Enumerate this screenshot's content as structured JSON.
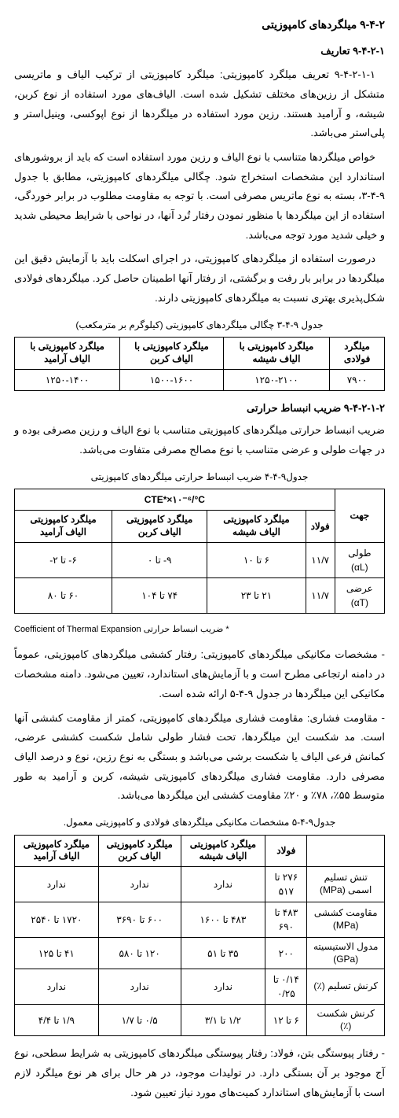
{
  "headings": {
    "sec_9_4_2": "۹-۴-۲  میلگردهای کامپوزیتی",
    "sec_9_4_2_1": "۹-۴-۲-۱ تعاریف",
    "sec_9_4_2_1_2": "۹-۴-۲-۱-۲ ضریب انبساط حرارتی"
  },
  "para": {
    "p1": "۹-۴-۲-۱-۱ تعریف میلگرد کامپوزیتی: میلگرد کامپوزیتی از ترکیب الیاف و ماتریسی متشکل از رزین‌های مختلف تشکیل شده است. الیاف‌های مورد استفاده از نوع کربن، شیشه، و آرامید هستند. رزین مورد استفاده در میلگردها از نوع اپوکسی، وینیل‌استر و پلی‌استر می‌باشد.",
    "p2": "خواص میلگردها متناسب با نوع الیاف و رزین مورد استفاده است که باید از بروشورهای استاندارد این مشخصات استخراج شود. چگالی میلگردهای کامپوزیتی، مطابق با جدول ۹-۴-۳، بسته به نوع ماتریس مصرفی است. با توجه به مقاومت مطلوب در برابر خوردگی، استفاده از این میلگردها با منظور نمودن رفتار تُرد آنها، در نواحی با شرایط محیطی شدید و خیلی شدید مورد توجه می‌باشد.",
    "p3": "درصورت استفاده از میلگردهای کامپوزیتی، در اجرای اسکلت باید با آزمایش دقیق این میلگردها در برابر بار رفت و برگشتی، از رفتار آنها اطمینان حاصل کرد. میلگردهای فولادی شکل‌پذیری بهتری نسبت به میلگردهای کامپوزیتی دارند.",
    "p4": "ضریب انبساط حرارتی میلگردهای کامپوزیتی متناسب با نوع الیاف و رزین مصرفی بوده و در جهات طولی و عرضی متناسب با نوع مصالح مصرفی متفاوت می‌باشد.",
    "b1": "- مشخصات مکانیکی میلگردهای کامپوزیتی: رفتار کششی میلگردهای کامپوزیتی، عموماً در دامنه ارتجاعی مطرح است و با آزمایش‌های استاندارد، تعیین می‌شود. دامنه مشخصات مکانیکی این میلگردها در جدول ۹-۴-۵ ارائه شده است.",
    "b2": "- مقاومت فشاری: مقاومت فشاری میلگردهای کامپوزیتی، کمتر از مقاومت کششی آنها است. مد شکست این میلگردها، تحت فشار طولی شامل شکست کششی عرضی، کمانش فرعی الیاف یا شکست برشی می‌باشد و بستگی به نوع رزین، نوع و درصد الیاف مصرفی دارد. مقاومت فشاری میلگردهای کامپوزیتی شیشه، کربن و آرامید به طور متوسط ۵۵٪، ۷۸٪ و ۲۰٪ مقاومت کششی این میلگردها می‌باشد.",
    "b3": "- رفتار پیوستگی بتن، فولاد: رفتار پیوستگی میلگردهای کامپوزیتی به شرایط سطحی، نوع آج موجود بر آن بستگی دارد. در تولیدات موجود، در هر حال برای هر نوع میلگرد لازم است با آزمایش‌های استاندارد کمیت‌های مورد نیاز تعیین شود."
  },
  "table1": {
    "caption": "جدول ۹-۴-۳ چگالی میلگردهای کامپوزیتی (کیلوگرم بر مترمکعب)",
    "headers": [
      "میلگرد فولادی",
      "میلگرد کامپوزیتی با الیاف شیشه",
      "میلگرد کامپوزیتی با الیاف کربن",
      "میلگرد کامپوزیتی با الیاف آرامید"
    ],
    "row": [
      "۷۹۰۰",
      "۱۲۵۰-۲۱۰۰",
      "۱۵۰۰-۱۶۰۰",
      "۱۲۵۰-۱۴۰۰"
    ]
  },
  "table2": {
    "caption": "جدول۹-۴-۴ ضریب انبساط حرارتی میلگردهای کامپوزیتی",
    "cte_header": "CTE*×۱۰⁻⁶/°C",
    "cols": {
      "jahat": "جهت",
      "steel": "فولاد",
      "glass": "میلگرد کامپوزیتی الیاف شیشه",
      "carbon": "میلگرد کامپوزیتی الیاف کربن",
      "aramid": "میلگرد کامپوزیتی الیاف آرامید"
    },
    "rows": [
      {
        "jahat": "طولی (αL)",
        "steel": "۱۱/۷",
        "glass": "۶ تا ۱۰",
        "carbon": "۹- تا ۰",
        "aramid": "۶- تا ۲-"
      },
      {
        "jahat": "عرضی (αT)",
        "steel": "۱۱/۷",
        "glass": "۲۱ تا ۲۳",
        "carbon": "۷۴ تا ۱۰۴",
        "aramid": "۶۰ تا ۸۰"
      }
    ],
    "note": "* ضریب انبساط حرارتی Coefficient of Thermal Expansion"
  },
  "table3": {
    "caption": "جدول۹-۴-۵ مشخصات مکانیکی میلگردهای فولادی و کامپوزیتی معمول.",
    "cols": {
      "prop": "",
      "steel": "فولاد",
      "glass": "میلگرد کامپوزیتی الیاف شیشه",
      "carbon": "میلگرد کامپوزیتی الیاف کربن",
      "aramid": "میلگرد کامپوزیتی الیاف آرامید"
    },
    "rows": [
      {
        "prop": "تنش تسلیم اسمی (MPa)",
        "steel": "۲۷۶ تا ۵۱۷",
        "glass": "ندارد",
        "carbon": "ندارد",
        "aramid": "ندارد"
      },
      {
        "prop": "مقاومت کششی (MPa)",
        "steel": "۴۸۳ تا ۶۹۰",
        "glass": "۴۸۳ تا ۱۶۰۰",
        "carbon": "۶۰۰ تا ۳۶۹۰",
        "aramid": "۱۷۲۰ تا ۲۵۴۰"
      },
      {
        "prop": "مدول الاستیسیته (GPa)",
        "steel": "۲۰۰",
        "glass": "۳۵ تا ۵۱",
        "carbon": "۱۲۰ تا ۵۸۰",
        "aramid": "۴۱ تا ۱۲۵"
      },
      {
        "prop": "کرنش تسلیم (٪)",
        "steel": "۰/۱۴ تا ۰/۲۵",
        "glass": "ندارد",
        "carbon": "ندارد",
        "aramid": "ندارد"
      },
      {
        "prop": "کرنش شکست (٪)",
        "steel": "۶ تا ۱۲",
        "glass": "۱/۲ تا ۳/۱",
        "carbon": "۰/۵ تا ۱/۷",
        "aramid": "۱/۹ تا ۴/۴"
      }
    ]
  }
}
